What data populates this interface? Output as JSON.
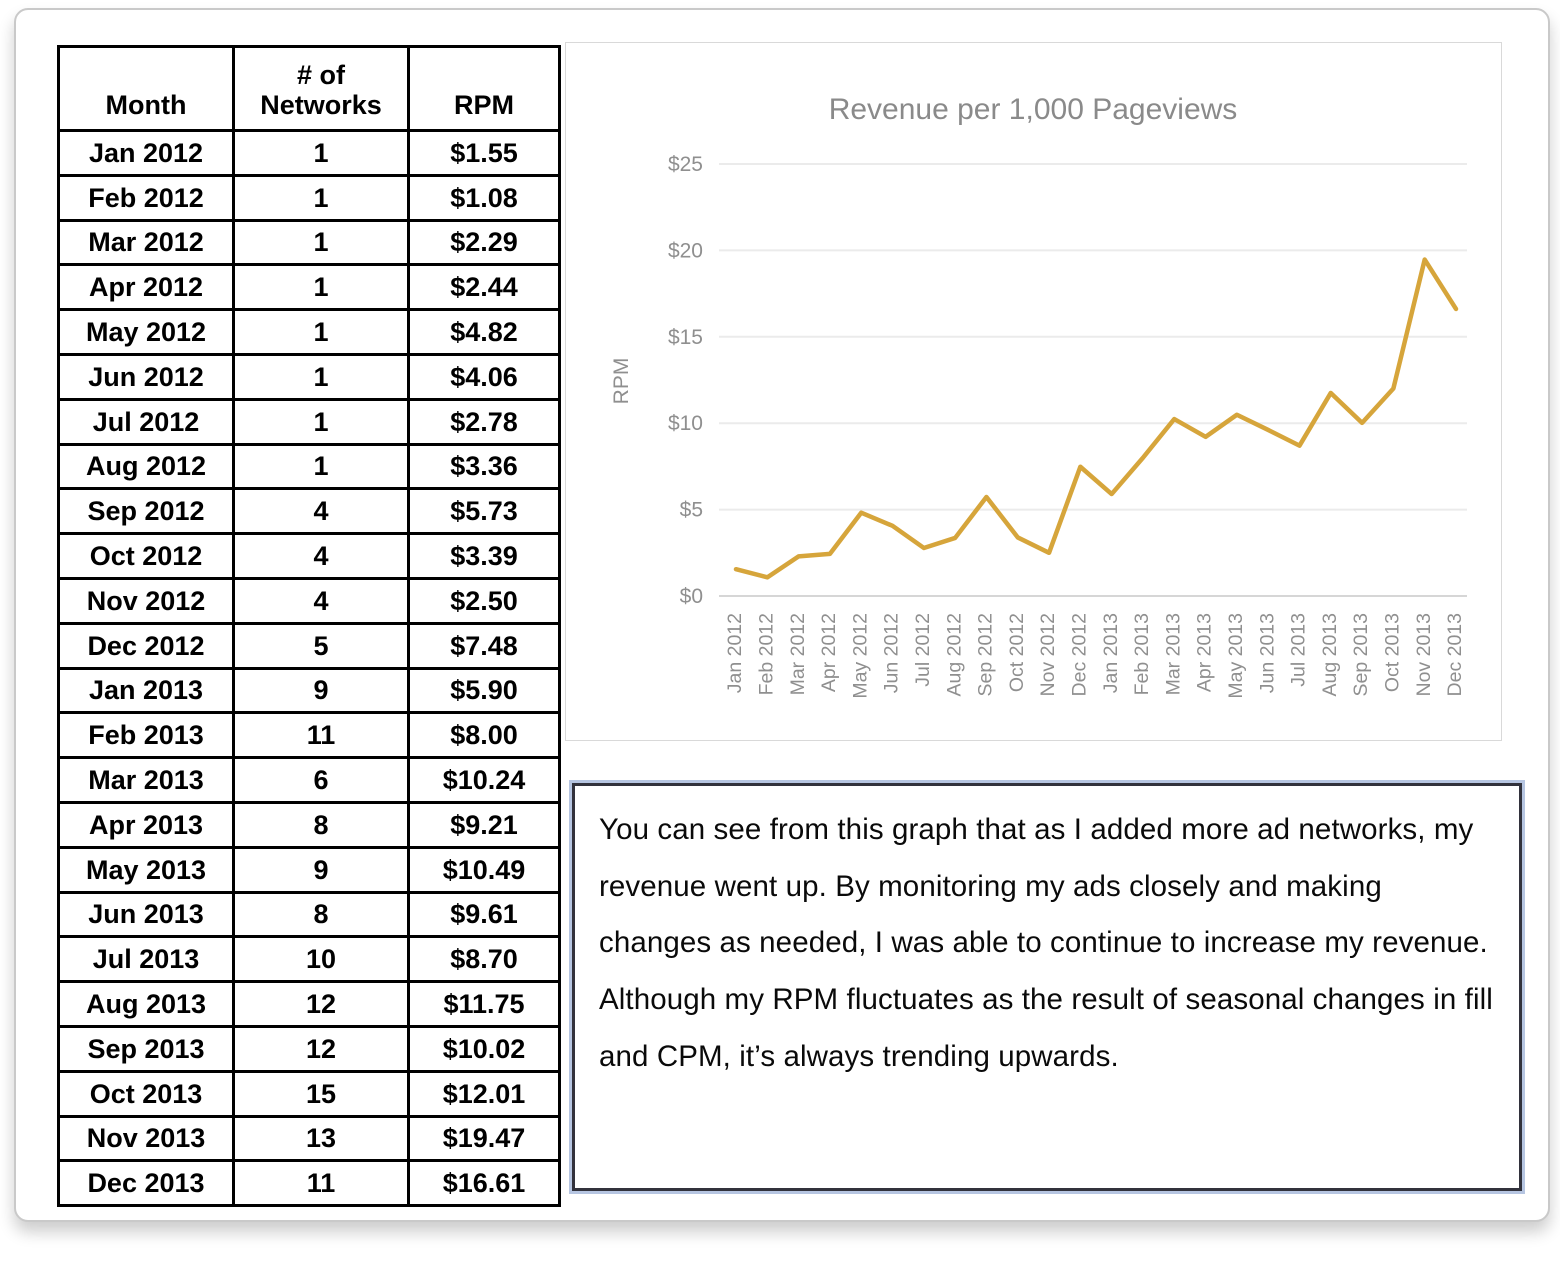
{
  "table": {
    "columns": [
      {
        "label": "Month"
      },
      {
        "label": "# of Networks"
      },
      {
        "label": "RPM"
      }
    ],
    "rows": [
      {
        "month": "Jan 2012",
        "networks": "1",
        "rpm": "$1.55"
      },
      {
        "month": "Feb 2012",
        "networks": "1",
        "rpm": "$1.08"
      },
      {
        "month": "Mar 2012",
        "networks": "1",
        "rpm": "$2.29"
      },
      {
        "month": "Apr 2012",
        "networks": "1",
        "rpm": "$2.44"
      },
      {
        "month": "May 2012",
        "networks": "1",
        "rpm": "$4.82"
      },
      {
        "month": "Jun 2012",
        "networks": "1",
        "rpm": "$4.06"
      },
      {
        "month": "Jul 2012",
        "networks": "1",
        "rpm": "$2.78"
      },
      {
        "month": "Aug 2012",
        "networks": "1",
        "rpm": "$3.36"
      },
      {
        "month": "Sep 2012",
        "networks": "4",
        "rpm": "$5.73"
      },
      {
        "month": "Oct 2012",
        "networks": "4",
        "rpm": "$3.39"
      },
      {
        "month": "Nov 2012",
        "networks": "4",
        "rpm": "$2.50"
      },
      {
        "month": "Dec 2012",
        "networks": "5",
        "rpm": "$7.48"
      },
      {
        "month": "Jan 2013",
        "networks": "9",
        "rpm": "$5.90"
      },
      {
        "month": "Feb 2013",
        "networks": "11",
        "rpm": "$8.00"
      },
      {
        "month": "Mar 2013",
        "networks": "6",
        "rpm": "$10.24"
      },
      {
        "month": "Apr 2013",
        "networks": "8",
        "rpm": "$9.21"
      },
      {
        "month": "May 2013",
        "networks": "9",
        "rpm": "$10.49"
      },
      {
        "month": "Jun 2013",
        "networks": "8",
        "rpm": "$9.61"
      },
      {
        "month": "Jul 2013",
        "networks": "10",
        "rpm": "$8.70"
      },
      {
        "month": "Aug 2013",
        "networks": "12",
        "rpm": "$11.75"
      },
      {
        "month": "Sep 2013",
        "networks": "12",
        "rpm": "$10.02"
      },
      {
        "month": "Oct 2013",
        "networks": "15",
        "rpm": "$12.01"
      },
      {
        "month": "Nov 2013",
        "networks": "13",
        "rpm": "$19.47"
      },
      {
        "month": "Dec 2013",
        "networks": "11",
        "rpm": "$16.61"
      }
    ]
  },
  "chart_data": {
    "type": "line",
    "title": "Revenue per 1,000 Pageviews",
    "ylabel": "RPM",
    "xlabel": "",
    "x": [
      "Jan 2012",
      "Feb 2012",
      "Mar 2012",
      "Apr 2012",
      "May 2012",
      "Jun 2012",
      "Jul 2012",
      "Aug 2012",
      "Sep 2012",
      "Oct 2012",
      "Nov 2012",
      "Dec 2012",
      "Jan 2013",
      "Feb 2013",
      "Mar 2013",
      "Apr 2013",
      "May 2013",
      "Jun 2013",
      "Jul 2013",
      "Aug 2013",
      "Sep 2013",
      "Oct 2013",
      "Nov 2013",
      "Dec 2013"
    ],
    "series": [
      {
        "name": "RPM",
        "values": [
          1.55,
          1.08,
          2.29,
          2.44,
          4.82,
          4.06,
          2.78,
          3.36,
          5.73,
          3.39,
          2.5,
          7.48,
          5.9,
          8.0,
          10.24,
          9.21,
          10.49,
          9.61,
          8.7,
          11.75,
          10.02,
          12.01,
          19.47,
          16.61
        ]
      }
    ],
    "ylim": [
      0,
      25
    ],
    "yticks": [
      0,
      5,
      10,
      15,
      20,
      25
    ],
    "ytick_prefix": "$",
    "grid": "horizontal",
    "legend": "none",
    "line_color": "#D6A53B",
    "axis_text_color": "#8f8f8f",
    "title_color": "#8a8a8a",
    "gridline_color": "#ebebeb",
    "baseline_color": "#d6d6d6"
  },
  "note": {
    "text": "You can see from this graph that as I added more ad networks, my revenue went up. By monitoring my ads closely and making changes as needed, I was able to continue to increase my revenue. Although my RPM fluctuates as the result of seasonal changes in fill and CPM, it’s always trending upwards."
  }
}
